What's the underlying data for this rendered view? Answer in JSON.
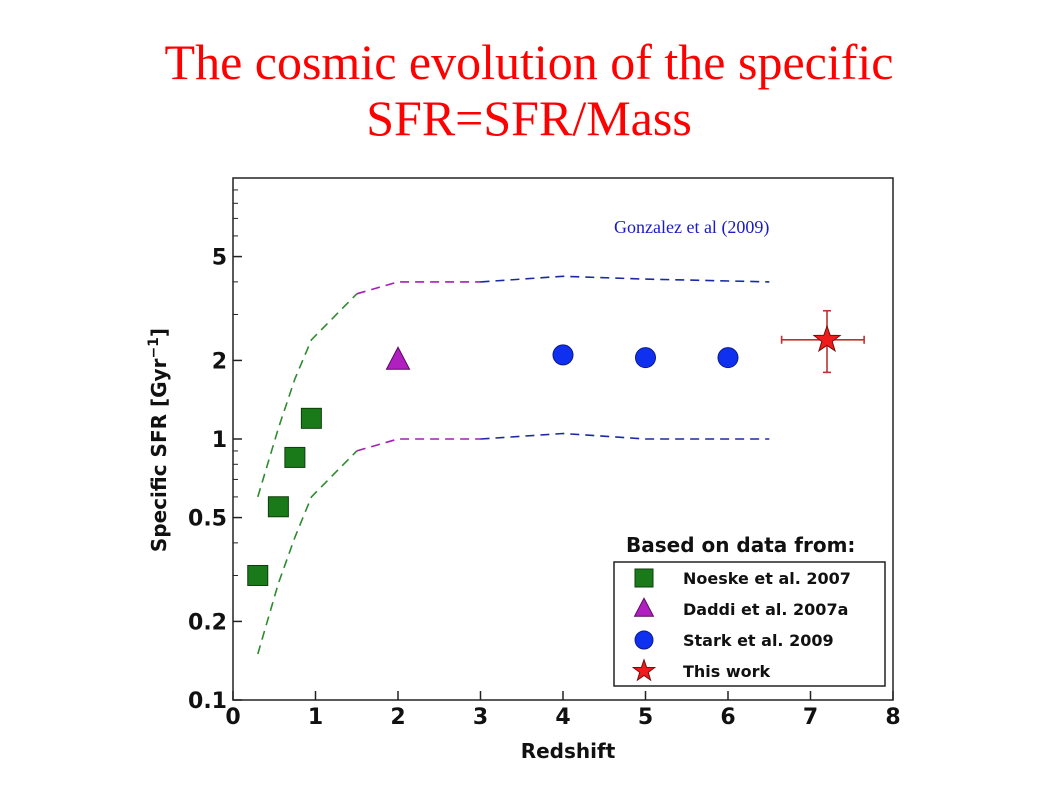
{
  "title": {
    "line1": "The cosmic evolution of the specific",
    "line2": "SFR=SFR/Mass"
  },
  "citation": "Gonzalez et al (2009)",
  "chart_data": {
    "type": "scatter",
    "xlabel": "Redshift",
    "ylabel": "Specific SFR [Gyr",
    "ylabel_sup": "−1",
    "ylabel_end": "]",
    "xlim": [
      0,
      8
    ],
    "ylim": [
      0.1,
      10
    ],
    "yscale": "log",
    "xticks": [
      0,
      1,
      2,
      3,
      4,
      5,
      6,
      7,
      8
    ],
    "xtick_labels": [
      "0",
      "1",
      "2",
      "3",
      "4",
      "5",
      "6",
      "7",
      "8"
    ],
    "yticks": [
      0.1,
      0.2,
      0.5,
      1,
      2,
      5
    ],
    "ytick_labels": [
      "0.1",
      "0.2",
      "0.5",
      "1",
      "2",
      "5"
    ],
    "legend_title": "Based on data from:",
    "legend_position": "bottom-right",
    "series": [
      {
        "name": "Noeske et al. 2007",
        "marker": "square",
        "color": "#1a7a1a",
        "points": [
          [
            0.3,
            0.3
          ],
          [
            0.55,
            0.55
          ],
          [
            0.75,
            0.85
          ],
          [
            0.95,
            1.2
          ]
        ]
      },
      {
        "name": "Daddi et al. 2007a",
        "marker": "triangle",
        "color": "#b020c0",
        "points": [
          [
            2.0,
            2.0
          ]
        ]
      },
      {
        "name": "Stark et al. 2009",
        "marker": "circle",
        "color": "#1030f0",
        "points": [
          [
            4.0,
            2.1
          ],
          [
            5.0,
            2.05
          ],
          [
            6.0,
            2.05
          ]
        ]
      },
      {
        "name": "This work",
        "marker": "star",
        "color": "#ee1c1c",
        "points": [
          [
            7.2,
            2.4
          ]
        ],
        "xerr": [
          0.55,
          0.45
        ],
        "yerr": [
          0.6,
          0.7
        ]
      }
    ],
    "bands": [
      {
        "part": "upper",
        "segments": [
          {
            "color": "#2e8b2e",
            "points": [
              [
                0.3,
                0.6
              ],
              [
                0.55,
                1.1
              ],
              [
                0.75,
                1.7
              ],
              [
                0.95,
                2.4
              ],
              [
                1.5,
                3.6
              ]
            ]
          },
          {
            "color": "#a020b0",
            "points": [
              [
                1.5,
                3.6
              ],
              [
                2.0,
                4.0
              ],
              [
                3.0,
                4.0
              ]
            ]
          },
          {
            "color": "#1a2aa0",
            "points": [
              [
                3.0,
                4.0
              ],
              [
                4.0,
                4.2
              ],
              [
                5.0,
                4.1
              ],
              [
                6.5,
                4.0
              ]
            ]
          }
        ]
      },
      {
        "part": "lower",
        "segments": [
          {
            "color": "#2e8b2e",
            "points": [
              [
                0.3,
                0.15
              ],
              [
                0.55,
                0.28
              ],
              [
                0.75,
                0.42
              ],
              [
                0.95,
                0.6
              ],
              [
                1.5,
                0.9
              ]
            ]
          },
          {
            "color": "#a020b0",
            "points": [
              [
                1.5,
                0.9
              ],
              [
                2.0,
                1.0
              ],
              [
                3.0,
                1.0
              ]
            ]
          },
          {
            "color": "#1a2aa0",
            "points": [
              [
                3.0,
                1.0
              ],
              [
                4.0,
                1.05
              ],
              [
                5.0,
                1.0
              ],
              [
                6.5,
                1.0
              ]
            ]
          }
        ]
      }
    ]
  }
}
